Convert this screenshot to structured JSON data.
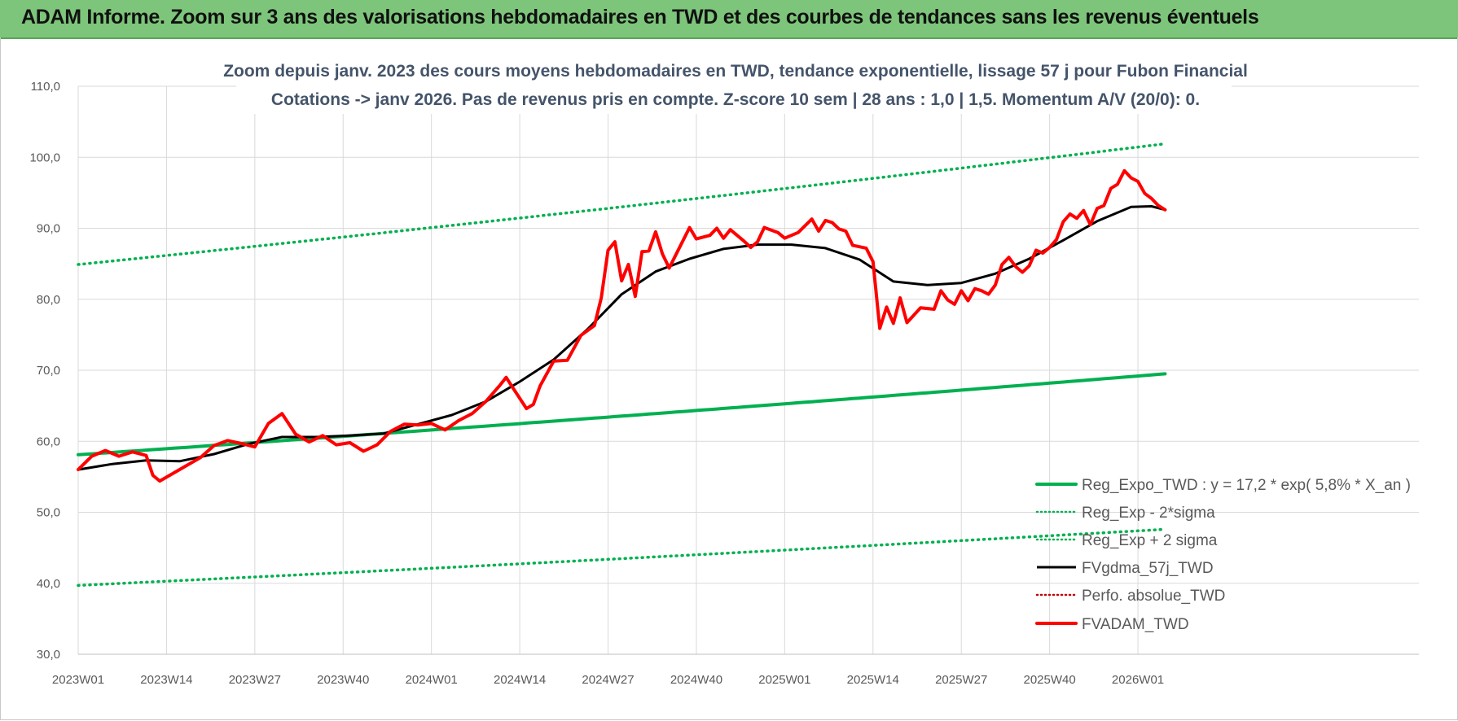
{
  "banner": {
    "title": "ADAM Informe. Zoom sur 3 ans des valorisations hebdomadaires en TWD et des courbes de tendances sans les revenus éventuels"
  },
  "chart_data": {
    "type": "line",
    "title": "Zoom depuis janv. 2023 des cours moyens hebdomadaires en TWD, tendance exponentielle, lissage 57 j pour Fubon Financial",
    "subtitle": "Cotations -> janv 2026. Pas de revenus pris en compte. Z-score 10 sem | 28 ans : 1,0 | 1,5. Momentum A/V (20/0): 0.",
    "ylim": [
      30,
      110
    ],
    "yticks": [
      "30,0",
      "40,0",
      "50,0",
      "60,0",
      "70,0",
      "80,0",
      "90,0",
      "100,0",
      "110,0"
    ],
    "ytick_values": [
      30,
      40,
      50,
      60,
      70,
      80,
      90,
      100,
      110
    ],
    "xticks": [
      "2023W01",
      "2023W14",
      "2023W27",
      "2023W40",
      "2024W01",
      "2024W14",
      "2024W27",
      "2024W40",
      "2025W01",
      "2025W14",
      "2025W27",
      "2025W40",
      "2026W01"
    ],
    "xtick_index": [
      0,
      13,
      26,
      39,
      52,
      65,
      78,
      91,
      104,
      117,
      130,
      143,
      156
    ],
    "n_weeks": 161,
    "series": [
      {
        "name": "Reg_Expo_TWD : y = 17,2 * exp( 5,8% *  X_an )",
        "color": "#00b050",
        "style": "solid-thick",
        "start": 58.1,
        "end": 69.5
      },
      {
        "name": "Reg_Exp - 2*sigma",
        "color": "#00b050",
        "style": "dotted",
        "start": 39.7,
        "end": 47.6
      },
      {
        "name": "Reg_Exp + 2 sigma",
        "color": "#00b050",
        "style": "dotted",
        "start": 84.9,
        "end": 101.9
      },
      {
        "name": "FVgdma_57j_TWD",
        "color": "#000000",
        "style": "solid",
        "points": [
          [
            0,
            56.0
          ],
          [
            5,
            56.8
          ],
          [
            10,
            57.3
          ],
          [
            15,
            57.2
          ],
          [
            20,
            58.2
          ],
          [
            25,
            59.6
          ],
          [
            30,
            60.6
          ],
          [
            35,
            60.6
          ],
          [
            40,
            60.8
          ],
          [
            45,
            61.1
          ],
          [
            50,
            62.4
          ],
          [
            55,
            63.7
          ],
          [
            60,
            65.6
          ],
          [
            65,
            68.4
          ],
          [
            70,
            71.5
          ],
          [
            75,
            75.8
          ],
          [
            80,
            80.7
          ],
          [
            85,
            83.9
          ],
          [
            90,
            85.7
          ],
          [
            95,
            87.1
          ],
          [
            100,
            87.7
          ],
          [
            105,
            87.7
          ],
          [
            110,
            87.2
          ],
          [
            115,
            85.6
          ],
          [
            120,
            82.5
          ],
          [
            125,
            82.0
          ],
          [
            130,
            82.3
          ],
          [
            135,
            83.6
          ],
          [
            140,
            85.7
          ],
          [
            145,
            88.3
          ],
          [
            150,
            91.0
          ],
          [
            155,
            93.0
          ],
          [
            158,
            93.1
          ],
          [
            160,
            92.6
          ]
        ]
      },
      {
        "name": "Perfo. absolue_TWD",
        "color": "#c00000",
        "style": "dotted",
        "points": []
      },
      {
        "name": "FVADAM_TWD",
        "color": "#ff0000",
        "style": "solid-thick",
        "points": [
          [
            0,
            56.0
          ],
          [
            2,
            57.9
          ],
          [
            4,
            58.7
          ],
          [
            6,
            57.9
          ],
          [
            8,
            58.5
          ],
          [
            10,
            58.0
          ],
          [
            11,
            55.2
          ],
          [
            12,
            54.4
          ],
          [
            14,
            55.5
          ],
          [
            16,
            56.6
          ],
          [
            18,
            57.7
          ],
          [
            20,
            59.4
          ],
          [
            22,
            60.1
          ],
          [
            24,
            59.7
          ],
          [
            26,
            59.2
          ],
          [
            28,
            62.5
          ],
          [
            30,
            63.9
          ],
          [
            32,
            61.0
          ],
          [
            34,
            59.9
          ],
          [
            36,
            60.8
          ],
          [
            38,
            59.5
          ],
          [
            40,
            59.8
          ],
          [
            42,
            58.6
          ],
          [
            44,
            59.5
          ],
          [
            46,
            61.4
          ],
          [
            48,
            62.4
          ],
          [
            50,
            62.3
          ],
          [
            52,
            62.5
          ],
          [
            54,
            61.6
          ],
          [
            56,
            62.9
          ],
          [
            58,
            63.9
          ],
          [
            60,
            65.6
          ],
          [
            62,
            67.8
          ],
          [
            63,
            69.0
          ],
          [
            64,
            67.5
          ],
          [
            66,
            64.6
          ],
          [
            67,
            65.2
          ],
          [
            68,
            67.8
          ],
          [
            70,
            71.3
          ],
          [
            72,
            71.4
          ],
          [
            74,
            74.9
          ],
          [
            76,
            76.3
          ],
          [
            77,
            80.2
          ],
          [
            78,
            86.9
          ],
          [
            79,
            88.1
          ],
          [
            80,
            82.6
          ],
          [
            81,
            84.9
          ],
          [
            82,
            80.4
          ],
          [
            83,
            86.7
          ],
          [
            84,
            86.8
          ],
          [
            85,
            89.5
          ],
          [
            86,
            86.4
          ],
          [
            87,
            84.4
          ],
          [
            88,
            86.3
          ],
          [
            90,
            90.1
          ],
          [
            91,
            88.5
          ],
          [
            93,
            89.0
          ],
          [
            94,
            90.0
          ],
          [
            95,
            88.6
          ],
          [
            96,
            89.8
          ],
          [
            98,
            88.2
          ],
          [
            99,
            87.3
          ],
          [
            100,
            88.1
          ],
          [
            101,
            90.1
          ],
          [
            103,
            89.4
          ],
          [
            104,
            88.6
          ],
          [
            106,
            89.4
          ],
          [
            108,
            91.3
          ],
          [
            109,
            89.6
          ],
          [
            110,
            91.1
          ],
          [
            111,
            90.8
          ],
          [
            112,
            89.9
          ],
          [
            113,
            89.6
          ],
          [
            114,
            87.6
          ],
          [
            116,
            87.2
          ],
          [
            117,
            85.3
          ],
          [
            118,
            75.9
          ],
          [
            119,
            78.9
          ],
          [
            120,
            76.6
          ],
          [
            121,
            80.2
          ],
          [
            122,
            76.7
          ],
          [
            124,
            78.8
          ],
          [
            126,
            78.6
          ],
          [
            127,
            81.2
          ],
          [
            128,
            79.9
          ],
          [
            129,
            79.3
          ],
          [
            130,
            81.2
          ],
          [
            131,
            79.8
          ],
          [
            132,
            81.5
          ],
          [
            133,
            81.2
          ],
          [
            134,
            80.7
          ],
          [
            135,
            82.0
          ],
          [
            136,
            84.9
          ],
          [
            137,
            85.9
          ],
          [
            138,
            84.6
          ],
          [
            139,
            83.8
          ],
          [
            140,
            84.7
          ],
          [
            141,
            86.9
          ],
          [
            142,
            86.5
          ],
          [
            143,
            87.3
          ],
          [
            144,
            88.4
          ],
          [
            145,
            90.9
          ],
          [
            146,
            92.0
          ],
          [
            147,
            91.4
          ],
          [
            148,
            92.5
          ],
          [
            149,
            90.5
          ],
          [
            150,
            92.8
          ],
          [
            151,
            93.2
          ],
          [
            152,
            95.6
          ],
          [
            153,
            96.2
          ],
          [
            154,
            98.1
          ],
          [
            155,
            97.1
          ],
          [
            156,
            96.6
          ],
          [
            157,
            94.9
          ],
          [
            158,
            94.2
          ],
          [
            159,
            93.2
          ],
          [
            160,
            92.6
          ]
        ]
      }
    ],
    "legend_position": "bottom-right",
    "grid": true
  }
}
